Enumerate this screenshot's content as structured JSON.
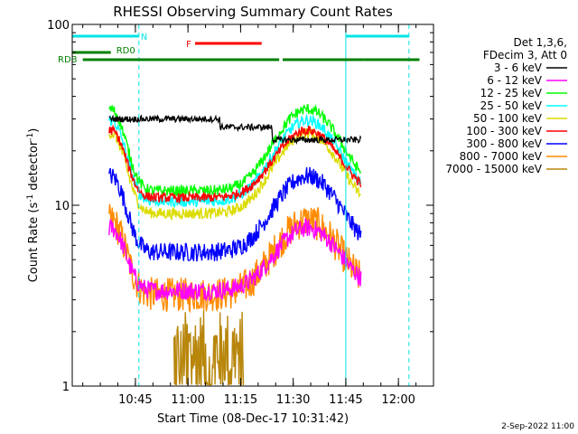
{
  "chart_data": {
    "type": "line",
    "title": "RHESSI Observing Summary Count Rates",
    "xlabel": "Start Time (08-Dec-17 10:31:42)",
    "ylabel_main": "Count Rate (s",
    "ylabel_sup1": "-1",
    "ylabel_mid": " detector",
    "ylabel_sup2": "-1",
    "ylabel_end": ")",
    "yscale": "log",
    "ylim": [
      1,
      100
    ],
    "y_ticks": [
      {
        "v": 1,
        "label": "1"
      },
      {
        "v": 10,
        "label": "10"
      },
      {
        "v": 100,
        "label": "100"
      }
    ],
    "xlim": [
      -9,
      94
    ],
    "x_ticks": [
      {
        "t": 9,
        "label": "10:45"
      },
      {
        "t": 24,
        "label": "11:00"
      },
      {
        "t": 39,
        "label": "11:15"
      },
      {
        "t": 54,
        "label": "11:30"
      },
      {
        "t": 69,
        "label": "11:45"
      },
      {
        "t": 84,
        "label": "12:00"
      }
    ],
    "legend_header": [
      "Det 1,3,6,",
      "FDecim 3, Att 0"
    ],
    "series": [
      {
        "name": "3 - 6 keV",
        "color": "#000000"
      },
      {
        "name": "6 - 12 keV",
        "color": "#ff00ff"
      },
      {
        "name": "12 - 25 keV",
        "color": "#00ff00"
      },
      {
        "name": "25 - 50 keV",
        "color": "#00ffff"
      },
      {
        "name": "50 - 100 keV",
        "color": "#dcdc00"
      },
      {
        "name": "100 - 300 keV",
        "color": "#ff0000"
      },
      {
        "name": "300 - 800 keV",
        "color": "#0000ff"
      },
      {
        "name": "800 - 7000 keV",
        "color": "#ff8c00"
      },
      {
        "name": "7000 - 15000 keV",
        "color": "#b8860b"
      }
    ],
    "flags": {
      "N": {
        "label": "N",
        "color": "#00e5e5",
        "segments": [
          [
            -9,
            10
          ],
          [
            69,
            87
          ]
        ]
      },
      "F": {
        "label": "F",
        "color": "#ff0000",
        "segments": [
          [
            26,
            45
          ]
        ]
      },
      "RD0": {
        "label": "RD0",
        "color": "#008000",
        "segments": [
          [
            -9,
            2
          ]
        ]
      },
      "RDB": {
        "label": "RDB",
        "color": "#008000",
        "segments": [
          [
            -6,
            26
          ],
          [
            26,
            50
          ],
          [
            51,
            74
          ],
          [
            74,
            90
          ]
        ]
      }
    },
    "night_lines": [
      {
        "t": -9,
        "style": "solid"
      },
      {
        "t": 10,
        "style": "dashed"
      },
      {
        "t": 69,
        "style": "solid"
      },
      {
        "t": 87,
        "style": "dashed"
      }
    ]
  },
  "footer_date": "2-Sep-2022 11:00"
}
